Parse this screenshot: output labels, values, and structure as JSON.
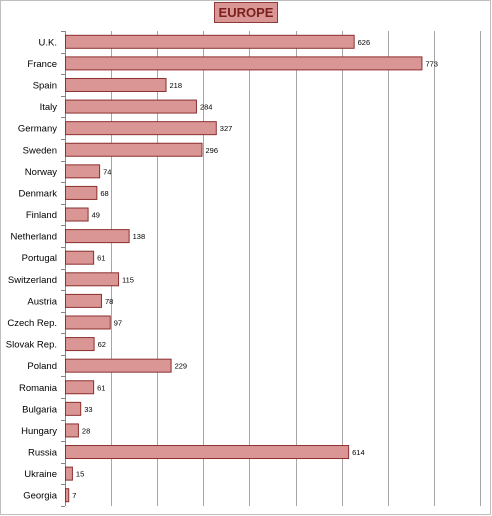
{
  "chart_data": {
    "type": "bar",
    "orientation": "horizontal",
    "title": "EUROPE",
    "categories": [
      "U.K.",
      "France",
      "Spain",
      "Italy",
      "Germany",
      "Sweden",
      "Norway",
      "Denmark",
      "Finland",
      "Netherland",
      "Portugal",
      "Switzerland",
      "Austria",
      "Czech Rep.",
      "Slovak Rep.",
      "Poland",
      "Romania",
      "Bulgaria",
      "Hungary",
      "Russia",
      "Ukraine",
      "Georgia"
    ],
    "values": [
      626,
      773,
      218,
      284,
      327,
      296,
      74,
      68,
      49,
      138,
      61,
      115,
      78,
      97,
      62,
      229,
      61,
      33,
      28,
      614,
      15,
      7
    ],
    "xlim": [
      0,
      900
    ],
    "grid": true,
    "bar_color": "#d99694",
    "bar_border": "#8c2f2f",
    "title_bg": "#d99694",
    "title_color": "#7b1f1f"
  }
}
